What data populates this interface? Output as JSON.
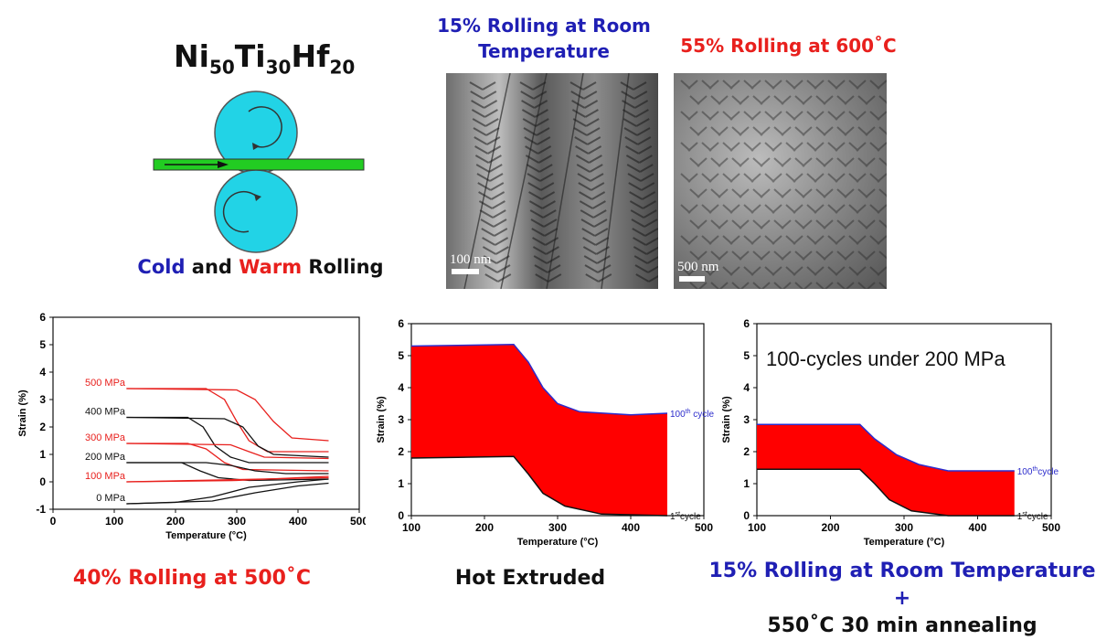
{
  "formula": {
    "element1": "Ni",
    "sub1": "50",
    "element2": "Ti",
    "sub2": "30",
    "element3": "Hf",
    "sub3": "20"
  },
  "rolling_caption": {
    "part1": "Cold",
    "part2": " and ",
    "part3": "Warm",
    "part4": " Rolling"
  },
  "micrographs": [
    {
      "title_line1": "15% Rolling at Room",
      "title_line2": "Temperature",
      "scale_label": "100 nm"
    },
    {
      "title": "55% Rolling at 600˚C",
      "scale_label": "500 nm"
    }
  ],
  "captions": {
    "left": "40% Rolling at  500˚C",
    "middle": "Hot Extruded",
    "right_line1": "15% Rolling at Room Temperature +",
    "right_line2": "550˚C 30 min annealing"
  },
  "chart_data": [
    {
      "type": "line",
      "xlabel": "Temperature (°C)",
      "ylabel": "Strain (%)",
      "xlim": [
        0,
        500
      ],
      "ylim": [
        -1,
        6
      ],
      "xticks": [
        "0",
        "100",
        "200",
        "300",
        "400",
        "500"
      ],
      "yticks": [
        "-1",
        "0",
        "1",
        "2",
        "3",
        "4",
        "5",
        "6"
      ],
      "series": [
        {
          "name": "500 MPa",
          "color": "#e8201d",
          "cool": [
            [
              120,
              3.4
            ],
            [
              250,
              3.4
            ],
            [
              280,
              3.0
            ],
            [
              300,
              2.2
            ],
            [
              320,
              1.5
            ],
            [
              350,
              1.1
            ],
            [
              450,
              1.1
            ]
          ],
          "heat": [
            [
              120,
              3.4
            ],
            [
              300,
              3.35
            ],
            [
              330,
              3.0
            ],
            [
              360,
              2.2
            ],
            [
              390,
              1.6
            ],
            [
              450,
              1.5
            ]
          ]
        },
        {
          "name": "400 MPa",
          "color": "#111111",
          "cool": [
            [
              120,
              2.35
            ],
            [
              220,
              2.35
            ],
            [
              245,
              2.0
            ],
            [
              265,
              1.3
            ],
            [
              290,
              0.9
            ],
            [
              320,
              0.7
            ],
            [
              450,
              0.7
            ]
          ],
          "heat": [
            [
              120,
              2.35
            ],
            [
              280,
              2.3
            ],
            [
              310,
              2.0
            ],
            [
              335,
              1.3
            ],
            [
              360,
              1.0
            ],
            [
              450,
              0.9
            ]
          ]
        },
        {
          "name": "300 MPa",
          "color": "#e8201d",
          "cool": [
            [
              120,
              1.4
            ],
            [
              220,
              1.4
            ],
            [
              250,
              1.2
            ],
            [
              280,
              0.7
            ],
            [
              310,
              0.45
            ],
            [
              450,
              0.4
            ]
          ],
          "heat": [
            [
              120,
              1.4
            ],
            [
              290,
              1.35
            ],
            [
              320,
              1.1
            ],
            [
              345,
              0.9
            ],
            [
              450,
              0.85
            ]
          ]
        },
        {
          "name": "200 MPa",
          "color": "#111111",
          "cool": [
            [
              120,
              0.7
            ],
            [
              210,
              0.7
            ],
            [
              240,
              0.4
            ],
            [
              270,
              0.15
            ],
            [
              320,
              0.05
            ],
            [
              450,
              0.1
            ]
          ],
          "heat": [
            [
              120,
              0.7
            ],
            [
              250,
              0.7
            ],
            [
              290,
              0.6
            ],
            [
              330,
              0.4
            ],
            [
              380,
              0.3
            ],
            [
              450,
              0.3
            ]
          ]
        },
        {
          "name": "100 MPa",
          "color": "#e8201d",
          "cool": [
            [
              120,
              0.0
            ],
            [
              450,
              0.15
            ]
          ],
          "heat": [
            [
              120,
              0.0
            ],
            [
              300,
              0.05
            ],
            [
              450,
              0.2
            ]
          ]
        },
        {
          "name": "0 MPa",
          "color": "#111111",
          "cool": [
            [
              120,
              -0.8
            ],
            [
              200,
              -0.75
            ],
            [
              260,
              -0.55
            ],
            [
              320,
              -0.2
            ],
            [
              400,
              0.0
            ],
            [
              450,
              0.1
            ]
          ],
          "heat": [
            [
              120,
              -0.8
            ],
            [
              260,
              -0.7
            ],
            [
              330,
              -0.4
            ],
            [
              400,
              -0.15
            ],
            [
              450,
              -0.05
            ]
          ]
        }
      ]
    },
    {
      "type": "area",
      "xlabel": "Temperature (°C)",
      "ylabel": "Strain (%)",
      "xlim": [
        100,
        500
      ],
      "ylim": [
        0,
        6
      ],
      "xticks": [
        "100",
        "200",
        "300",
        "400",
        "500"
      ],
      "yticks": [
        "0",
        "1",
        "2",
        "3",
        "4",
        "5",
        "6"
      ],
      "band_color": "#ff0000",
      "upper_series": {
        "name": "100th cycle",
        "color": "#2c2ccc",
        "values": [
          [
            100,
            5.3
          ],
          [
            240,
            5.35
          ],
          [
            260,
            4.8
          ],
          [
            280,
            4.0
          ],
          [
            300,
            3.5
          ],
          [
            330,
            3.25
          ],
          [
            400,
            3.15
          ],
          [
            450,
            3.2
          ]
        ]
      },
      "lower_series": {
        "name": "1st cycle",
        "color": "#111111",
        "values": [
          [
            100,
            1.8
          ],
          [
            240,
            1.85
          ],
          [
            260,
            1.3
          ],
          [
            280,
            0.7
          ],
          [
            310,
            0.3
          ],
          [
            360,
            0.05
          ],
          [
            450,
            0.0
          ]
        ]
      },
      "labels": {
        "upper": {
          "base": "100",
          "sup": "th",
          "rest": " cycle"
        },
        "lower": {
          "base": "1",
          "sup": "st",
          "rest": "cycle"
        }
      }
    },
    {
      "type": "area",
      "xlabel": "Temperature (°C)",
      "ylabel": "Strain (%)",
      "annotation": "100-cycles under 200 MPa",
      "xlim": [
        100,
        500
      ],
      "ylim": [
        0,
        6
      ],
      "xticks": [
        "100",
        "200",
        "300",
        "400",
        "500"
      ],
      "yticks": [
        "0",
        "1",
        "2",
        "3",
        "4",
        "5",
        "6"
      ],
      "band_color": "#ff0000",
      "upper_series": {
        "name": "100th cycle",
        "color": "#2c2ccc",
        "values": [
          [
            100,
            2.85
          ],
          [
            240,
            2.85
          ],
          [
            260,
            2.4
          ],
          [
            290,
            1.9
          ],
          [
            320,
            1.6
          ],
          [
            360,
            1.4
          ],
          [
            450,
            1.4
          ]
        ]
      },
      "lower_series": {
        "name": "1st cycle",
        "color": "#111111",
        "values": [
          [
            100,
            1.45
          ],
          [
            240,
            1.45
          ],
          [
            260,
            1.0
          ],
          [
            280,
            0.5
          ],
          [
            310,
            0.15
          ],
          [
            360,
            0.0
          ],
          [
            450,
            0.0
          ]
        ]
      },
      "labels": {
        "upper": {
          "base": "100",
          "sup": "th",
          "rest": "cycle"
        },
        "lower": {
          "base": "1",
          "sup": "st",
          "rest": "cycle"
        }
      }
    }
  ]
}
